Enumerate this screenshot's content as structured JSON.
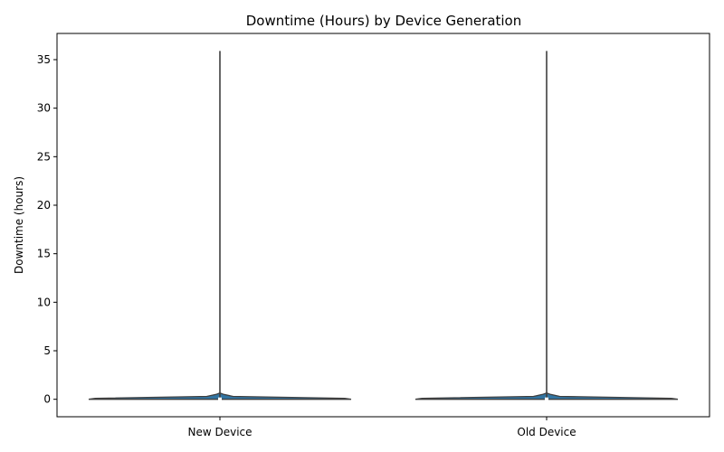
{
  "chart_data": {
    "type": "violin",
    "title": "Downtime (Hours) by Device Generation",
    "xlabel": "",
    "ylabel": "Downtime (hours)",
    "ylim": [
      -1.8,
      37.7
    ],
    "yticks": [
      0,
      5,
      10,
      15,
      20,
      25,
      30,
      35
    ],
    "categories": [
      "New Device",
      "Old Device"
    ],
    "series": [
      {
        "category": "New Device",
        "min": 0,
        "max": 35.9,
        "median": 0,
        "q1": 0,
        "q3": 0.1,
        "profile": [
          [
            0,
            1.0
          ],
          [
            0.1,
            0.95
          ],
          [
            0.3,
            0.1
          ],
          [
            0.5,
            0.03
          ],
          [
            0.65,
            0.0
          ]
        ]
      },
      {
        "category": "Old Device",
        "min": 0,
        "max": 35.9,
        "median": 0,
        "q1": 0,
        "q3": 0.1,
        "profile": [
          [
            0,
            1.0
          ],
          [
            0.1,
            0.95
          ],
          [
            0.3,
            0.1
          ],
          [
            0.5,
            0.03
          ],
          [
            0.65,
            0.0
          ]
        ]
      }
    ],
    "violin_color": "#3274a1",
    "grid": false
  }
}
